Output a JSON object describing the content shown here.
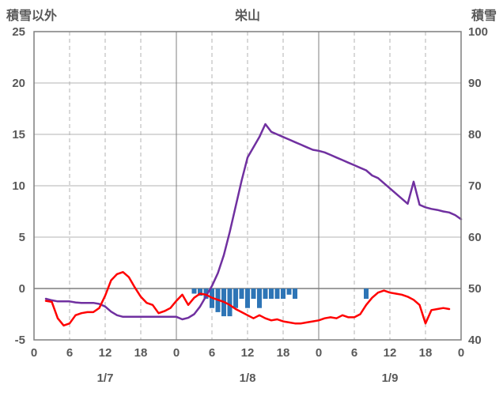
{
  "header": {
    "left_axis_title": "積雪以外",
    "chart_title": "栄山",
    "right_axis_title": "積雪"
  },
  "chart_data": {
    "type": "line",
    "title": "栄山",
    "left_axis": {
      "label": "積雪以外",
      "min": -5,
      "max": 25,
      "ticks": [
        -5,
        0,
        5,
        10,
        15,
        20,
        25
      ]
    },
    "right_axis": {
      "label": "積雪",
      "min": 40,
      "max": 100,
      "ticks": [
        40,
        50,
        60,
        70,
        80,
        90,
        100
      ]
    },
    "x_axis": {
      "hours_total": 72,
      "tick_interval": 6,
      "tick_labels": [
        "0",
        "6",
        "12",
        "18",
        "0",
        "6",
        "12",
        "18",
        "0",
        "6",
        "12",
        "18",
        "0"
      ],
      "date_labels": [
        "1/7",
        "1/8",
        "1/9"
      ]
    },
    "grid": {
      "horizontal": "solid",
      "vertical_6h": "dashed",
      "vertical_day": "solid",
      "legend": "none"
    },
    "colors": {
      "red_line": "#ff0000",
      "purple_line": "#7030a0",
      "blue_bar": "#2e75b6",
      "grid": "#b3b3b3",
      "axis_border": "#7f7f7f",
      "text": "#595959",
      "background": "#ffffff"
    },
    "series": [
      {
        "name": "blue-bars",
        "axis": "left",
        "kind": "bar",
        "color": "#2e75b6",
        "points": [
          [
            27,
            -0.5
          ],
          [
            28,
            -0.7
          ],
          [
            29,
            -1.0
          ],
          [
            30,
            -1.9
          ],
          [
            31,
            -2.3
          ],
          [
            32,
            -2.7
          ],
          [
            33,
            -2.7
          ],
          [
            34,
            -1.9
          ],
          [
            35,
            -1.0
          ],
          [
            36,
            -1.9
          ],
          [
            37,
            -1.0
          ],
          [
            38,
            -1.9
          ],
          [
            39,
            -1.0
          ],
          [
            40,
            -1.0
          ],
          [
            41,
            -1.0
          ],
          [
            42,
            -1.0
          ],
          [
            43,
            -0.6
          ],
          [
            44,
            -1.0
          ],
          [
            56,
            -1.0
          ]
        ]
      },
      {
        "name": "purple-line",
        "axis": "right",
        "kind": "line",
        "color": "#7030a0",
        "points": [
          [
            2,
            48
          ],
          [
            3,
            47.7
          ],
          [
            4,
            47.5
          ],
          [
            5,
            47.5
          ],
          [
            6,
            47.5
          ],
          [
            7,
            47.3
          ],
          [
            8,
            47.2
          ],
          [
            9,
            47.2
          ],
          [
            10,
            47.2
          ],
          [
            11,
            47
          ],
          [
            12,
            46.5
          ],
          [
            13,
            45.5
          ],
          [
            14,
            44.8
          ],
          [
            15,
            44.5
          ],
          [
            16,
            44.5
          ],
          [
            17,
            44.5
          ],
          [
            18,
            44.5
          ],
          [
            19,
            44.5
          ],
          [
            20,
            44.5
          ],
          [
            21,
            44.5
          ],
          [
            22,
            44.5
          ],
          [
            23,
            44.5
          ],
          [
            24,
            44.5
          ],
          [
            25,
            44
          ],
          [
            26,
            44.3
          ],
          [
            27,
            45
          ],
          [
            28,
            46.5
          ],
          [
            29,
            48.5
          ],
          [
            30,
            50.5
          ],
          [
            31,
            53
          ],
          [
            32,
            56.5
          ],
          [
            33,
            61
          ],
          [
            34,
            66
          ],
          [
            35,
            71
          ],
          [
            36,
            75.5
          ],
          [
            37,
            77.5
          ],
          [
            38,
            79.5
          ],
          [
            39,
            82
          ],
          [
            40,
            80.5
          ],
          [
            41,
            80
          ],
          [
            42,
            79.5
          ],
          [
            43,
            79
          ],
          [
            44,
            78.5
          ],
          [
            45,
            78
          ],
          [
            46,
            77.5
          ],
          [
            47,
            77
          ],
          [
            48,
            76.8
          ],
          [
            49,
            76.5
          ],
          [
            50,
            76
          ],
          [
            51,
            75.5
          ],
          [
            52,
            75
          ],
          [
            53,
            74.5
          ],
          [
            54,
            74
          ],
          [
            55,
            73.5
          ],
          [
            56,
            73
          ],
          [
            57,
            72
          ],
          [
            58,
            71.5
          ],
          [
            59,
            70.5
          ],
          [
            60,
            69.5
          ],
          [
            61,
            68.5
          ],
          [
            62,
            67.5
          ],
          [
            63,
            66.5
          ],
          [
            64,
            70.8
          ],
          [
            65,
            66.3
          ],
          [
            66,
            65.8
          ],
          [
            67,
            65.5
          ],
          [
            68,
            65.3
          ],
          [
            69,
            65
          ],
          [
            70,
            64.8
          ],
          [
            71,
            64.3
          ],
          [
            72,
            63.5
          ]
        ]
      },
      {
        "name": "red-line",
        "axis": "left",
        "kind": "line",
        "color": "#ff0000",
        "points": [
          [
            2,
            -1.2
          ],
          [
            3,
            -1.3
          ],
          [
            4,
            -2.9
          ],
          [
            5,
            -3.6
          ],
          [
            6,
            -3.4
          ],
          [
            7,
            -2.6
          ],
          [
            8,
            -2.4
          ],
          [
            9,
            -2.3
          ],
          [
            10,
            -2.3
          ],
          [
            11,
            -1.9
          ],
          [
            12,
            -0.7
          ],
          [
            13,
            0.8
          ],
          [
            14,
            1.4
          ],
          [
            15,
            1.6
          ],
          [
            16,
            1.1
          ],
          [
            17,
            0.1
          ],
          [
            18,
            -0.8
          ],
          [
            19,
            -1.4
          ],
          [
            20,
            -1.6
          ],
          [
            21,
            -2.4
          ],
          [
            22,
            -2.2
          ],
          [
            23,
            -1.9
          ],
          [
            24,
            -1.2
          ],
          [
            25,
            -0.6
          ],
          [
            26,
            -1.6
          ],
          [
            27,
            -0.9
          ],
          [
            28,
            -0.5
          ],
          [
            29,
            -0.6
          ],
          [
            30,
            -0.9
          ],
          [
            31,
            -1.1
          ],
          [
            32,
            -1.3
          ],
          [
            33,
            -1.6
          ],
          [
            34,
            -2.0
          ],
          [
            35,
            -2.3
          ],
          [
            36,
            -2.6
          ],
          [
            37,
            -2.9
          ],
          [
            38,
            -2.6
          ],
          [
            39,
            -2.9
          ],
          [
            40,
            -3.1
          ],
          [
            41,
            -3.0
          ],
          [
            42,
            -3.2
          ],
          [
            43,
            -3.3
          ],
          [
            44,
            -3.4
          ],
          [
            45,
            -3.4
          ],
          [
            46,
            -3.3
          ],
          [
            47,
            -3.2
          ],
          [
            48,
            -3.1
          ],
          [
            49,
            -2.9
          ],
          [
            50,
            -2.8
          ],
          [
            51,
            -2.9
          ],
          [
            52,
            -2.6
          ],
          [
            53,
            -2.8
          ],
          [
            54,
            -2.8
          ],
          [
            55,
            -2.5
          ],
          [
            56,
            -1.6
          ],
          [
            57,
            -0.9
          ],
          [
            58,
            -0.4
          ],
          [
            59,
            -0.2
          ],
          [
            60,
            -0.4
          ],
          [
            61,
            -0.5
          ],
          [
            62,
            -0.6
          ],
          [
            63,
            -0.8
          ],
          [
            64,
            -1.1
          ],
          [
            65,
            -1.6
          ],
          [
            66,
            -3.4
          ],
          [
            67,
            -2.1
          ],
          [
            68,
            -2.0
          ],
          [
            69,
            -1.9
          ],
          [
            70,
            -2.0
          ]
        ]
      }
    ]
  }
}
